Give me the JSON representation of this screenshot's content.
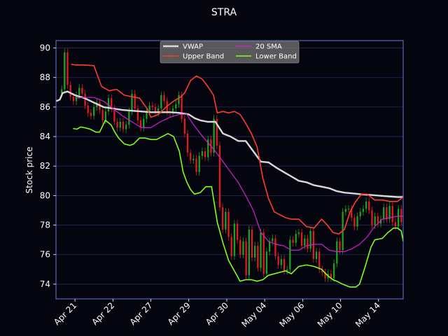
{
  "chart_data": {
    "type": "candlestick-line",
    "title": "STRA",
    "ylabel": "Stock price",
    "xlabel": "",
    "ylim": [
      73,
      90.5
    ],
    "yticks": [
      74,
      76,
      78,
      80,
      82,
      84,
      86,
      88,
      90
    ],
    "xlim": [
      0,
      18.3
    ],
    "xticks": [
      {
        "label": "Apr 21",
        "x": 1
      },
      {
        "label": "Apr 22",
        "x": 3
      },
      {
        "label": "Apr 27",
        "x": 5
      },
      {
        "label": "Apr 29",
        "x": 7
      },
      {
        "label": "Apr 30",
        "x": 9
      },
      {
        "label": "May 04",
        "x": 11
      },
      {
        "label": "May 06",
        "x": 13
      },
      {
        "label": "May 10",
        "x": 15
      },
      {
        "label": "May 14",
        "x": 17
      }
    ],
    "grid": true,
    "legend_position": "top-center",
    "legend": [
      "VWAP",
      "Upper Band",
      "20 SMA",
      "Lower Band"
    ],
    "colors": {
      "background": "#050510",
      "axes_border": "#5b7bd6",
      "grid": "#2a2a5a",
      "VWAP": "#d9d9d9",
      "Upper Band": "#ff3b30",
      "20 SMA": "#d21fd2",
      "Lower Band": "#7fff1a",
      "candle_up": "#1fa01f",
      "candle_down": "#e01c1c"
    },
    "series": [
      {
        "name": "VWAP",
        "x": [
          0,
          0.2,
          0.35,
          0.6,
          1,
          1.5,
          2,
          2.5,
          3,
          3.5,
          4,
          4.5,
          5,
          5.5,
          6,
          6.5,
          7,
          7.3,
          7.6,
          8,
          8.4,
          8.8,
          9.2,
          9.6,
          10,
          10.4,
          10.8,
          11.2,
          11.6,
          12,
          12.4,
          12.8,
          13.2,
          13.6,
          14,
          14.4,
          14.8,
          15.2,
          15.6,
          16,
          16.5,
          17,
          17.5,
          18,
          18.3
        ],
        "y": [
          86.4,
          86.5,
          86.95,
          87.05,
          86.8,
          86.6,
          86.3,
          86.0,
          85.9,
          85.8,
          85.75,
          85.7,
          85.65,
          85.65,
          85.65,
          85.6,
          85.5,
          85.25,
          85.1,
          85.0,
          85.0,
          84.2,
          84.0,
          83.7,
          83.7,
          83.0,
          82.3,
          82.25,
          81.9,
          81.6,
          81.3,
          81.0,
          80.9,
          80.7,
          80.6,
          80.5,
          80.3,
          80.2,
          80.15,
          80.1,
          80.05,
          80.0,
          79.95,
          79.9,
          79.9
        ]
      },
      {
        "name": "Upper Band",
        "x": [
          0.8,
          1,
          1.5,
          2,
          2.4,
          2.8,
          3.2,
          3.6,
          4,
          4.4,
          4.8,
          5,
          5.4,
          5.8,
          6.2,
          6.6,
          6.8,
          7.1,
          7.4,
          7.7,
          8,
          8.3,
          8.5,
          8.8,
          9.1,
          9.4,
          9.7,
          10,
          10.3,
          10.6,
          10.9,
          11.2,
          11.5,
          11.8,
          12.1,
          12.4,
          12.8,
          13.2,
          13.6,
          14,
          14.3,
          14.6,
          14.9,
          15.2,
          15.5,
          15.8,
          16.1,
          16.4,
          16.8,
          17.2,
          17.6,
          18,
          18.3
        ],
        "y": [
          88.9,
          88.85,
          88.85,
          88.8,
          87.4,
          87.1,
          87.2,
          86.8,
          86.7,
          86.6,
          85.9,
          85.3,
          85.5,
          86.0,
          86.4,
          86.7,
          87.0,
          87.8,
          88.1,
          87.9,
          87.4,
          86.8,
          85.6,
          85.7,
          85.6,
          85.7,
          85.5,
          84.9,
          84.2,
          83.3,
          81.2,
          79.8,
          78.9,
          78.7,
          78.5,
          78.4,
          78.4,
          77.9,
          77.8,
          78.4,
          78.0,
          77.5,
          77.4,
          77.7,
          78.9,
          79.6,
          80.1,
          80.1,
          79.7,
          79.7,
          79.6,
          79.6,
          79.9
        ]
      },
      {
        "name": "20 SMA",
        "x": [
          1,
          1.5,
          2,
          2.5,
          3,
          3.5,
          4,
          4.5,
          5,
          5.5,
          6,
          6.5,
          6.9,
          7.2,
          7.6,
          8,
          8.4,
          8.8,
          9.2,
          9.6,
          10,
          10.4,
          10.8,
          11.2,
          11.6,
          12,
          12.4,
          12.8,
          13.2,
          13.6,
          14,
          14.4,
          14.8,
          15.2,
          15.6,
          16,
          16.4,
          16.8,
          17.2,
          17.6,
          18,
          18.3
        ],
        "y": [
          86.6,
          86.65,
          86.65,
          86.4,
          85.9,
          85.4,
          85.0,
          84.6,
          84.6,
          85.0,
          85.3,
          85.5,
          85.5,
          84.9,
          84.2,
          83.6,
          83.0,
          82.3,
          81.6,
          80.9,
          80.0,
          79.0,
          77.5,
          76.9,
          76.7,
          76.6,
          76.3,
          76.3,
          76.6,
          76.7,
          76.7,
          76.3,
          76.2,
          76.2,
          76.4,
          76.7,
          77.2,
          77.9,
          78.4,
          78.5,
          78.6,
          78.6
        ]
      },
      {
        "name": "Lower Band",
        "x": [
          0.9,
          1.1,
          1.3,
          1.5,
          1.8,
          2.1,
          2.3,
          2.6,
          2.9,
          3.1,
          3.3,
          3.6,
          3.9,
          4.1,
          4.4,
          4.7,
          5,
          5.3,
          5.6,
          5.9,
          6.2,
          6.5,
          6.7,
          6.9,
          7.1,
          7.3,
          7.6,
          7.9,
          8.2,
          8.5,
          8.8,
          9.1,
          9.4,
          9.7,
          10,
          10.3,
          10.6,
          10.9,
          11.2,
          11.5,
          11.8,
          12.1,
          12.4,
          12.8,
          13.2,
          13.6,
          14,
          14.3,
          14.6,
          14.8,
          15.1,
          15.3,
          15.5,
          15.8,
          16,
          16.3,
          16.6,
          16.8,
          17.2,
          17.5,
          17.8,
          18,
          18.2,
          18.3
        ],
        "y": [
          84.55,
          84.5,
          84.65,
          84.6,
          84.5,
          84.3,
          84.3,
          85.1,
          84.8,
          84.3,
          83.9,
          83.5,
          83.4,
          83.5,
          83.9,
          83.9,
          83.8,
          83.8,
          84.0,
          84.2,
          84.0,
          83.0,
          81.6,
          80.9,
          80.4,
          80.1,
          80.2,
          80.6,
          80.6,
          78.2,
          76.8,
          75.6,
          74.9,
          74.2,
          74.3,
          74.3,
          74.2,
          74.3,
          74.6,
          74.7,
          74.8,
          74.9,
          74.7,
          75.2,
          75.3,
          75.2,
          75.0,
          74.6,
          74.3,
          74.2,
          74.0,
          73.9,
          73.8,
          73.8,
          74.0,
          75.2,
          76.5,
          77.0,
          77.1,
          77.5,
          77.8,
          77.8,
          77.6,
          76.9
        ]
      }
    ],
    "candles_close": [
      87.2,
      89.7,
      87.5,
      86.7,
      86.4,
      86.8,
      87.3,
      86.9,
      86.1,
      85.6,
      85.4,
      86.0,
      86.3,
      85.8,
      85.1,
      85.7,
      86.6,
      85.9,
      85.0,
      84.6,
      85.0,
      84.5,
      84.8,
      85.7,
      86.9,
      85.9,
      85.1,
      84.6,
      85.2,
      85.7,
      86.1,
      86.0,
      85.6,
      85.9,
      86.8,
      86.4,
      85.7,
      85.6,
      85.9,
      86.2,
      86.8,
      85.2,
      84.2,
      82.9,
      82.4,
      82.5,
      81.6,
      82.7,
      83.0,
      82.6,
      83.8,
      82.9,
      85.2,
      83.4,
      79.2,
      77.7,
      78.9,
      77.2,
      75.9,
      78.1,
      77.0,
      76.0,
      76.9,
      74.6,
      77.7,
      75.8,
      76.6,
      75.1,
      77.5,
      74.7,
      76.2,
      76.9,
      77.1,
      75.9,
      75.3,
      75.7,
      74.9,
      75.0,
      77.0,
      76.8,
      77.4,
      77.5,
      76.6,
      77.1,
      76.4,
      77.6,
      75.7,
      76.2,
      75.0,
      74.8,
      74.4,
      74.7,
      74.4,
      75.4,
      76.9,
      76.3,
      78.9,
      79.1,
      79.1,
      78.5,
      77.9,
      78.6,
      78.9,
      79.1,
      79.6,
      79.0,
      78.0,
      78.6,
      78.1,
      78.4,
      79.2,
      78.4,
      79.3,
      78.2,
      77.9,
      79.1,
      78.2
    ]
  }
}
